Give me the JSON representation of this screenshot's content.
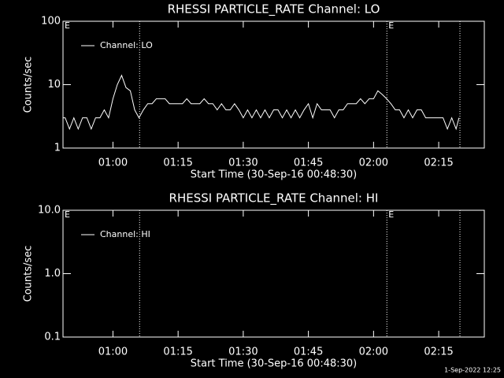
{
  "chart_data": [
    {
      "type": "line",
      "title": "RHESSI PARTICLE_RATE Channel: LO",
      "xlabel": "Start Time (30-Sep-16 00:48:30)",
      "ylabel": "Counts/sec",
      "log_y": true,
      "legend": "upper left",
      "xlim": [
        "00:48:30",
        "02:25:30"
      ],
      "xticks": [
        "01:00",
        "01:15",
        "01:30",
        "01:45",
        "02:00",
        "02:15"
      ],
      "ylim": [
        1,
        100
      ],
      "yticks": [
        1,
        10,
        100
      ],
      "vlines": [
        "01:06:08",
        "02:03:04",
        "02:19:53"
      ],
      "annotations": [
        {
          "text": "E",
          "x": "00:48:30"
        },
        {
          "text": "E",
          "x": "02:03:04"
        }
      ],
      "x": [
        "00:48:30",
        "00:49",
        "00:50",
        "00:51",
        "00:52",
        "00:53",
        "00:54",
        "00:55",
        "00:56",
        "00:57",
        "00:58",
        "00:59",
        "01:00",
        "01:01",
        "01:02",
        "01:03",
        "01:04",
        "01:05",
        "01:06",
        "01:07",
        "01:08",
        "01:09",
        "01:10",
        "01:11",
        "01:12",
        "01:13",
        "01:14",
        "01:15",
        "01:16",
        "01:17",
        "01:18",
        "01:19",
        "01:20",
        "01:21",
        "01:22",
        "01:23",
        "01:24",
        "01:25",
        "01:26",
        "01:27",
        "01:28",
        "01:29",
        "01:30",
        "01:31",
        "01:32",
        "01:33",
        "01:34",
        "01:35",
        "01:36",
        "01:37",
        "01:38",
        "01:39",
        "01:40",
        "01:41",
        "01:42",
        "01:43",
        "01:44",
        "01:45",
        "01:46",
        "01:47",
        "01:48",
        "01:49",
        "01:50",
        "01:51",
        "01:52",
        "01:53",
        "01:54",
        "01:55",
        "01:56",
        "01:57",
        "01:58",
        "01:59",
        "02:00",
        "02:01",
        "02:02",
        "02:03",
        "02:04",
        "02:05",
        "02:06",
        "02:07",
        "02:08",
        "02:09",
        "02:10",
        "02:11",
        "02:12",
        "02:13",
        "02:14",
        "02:15",
        "02:16",
        "02:17",
        "02:18",
        "02:19",
        "02:19:40"
      ],
      "series": [
        {
          "name": "Channel: LO",
          "color": "#ffffff",
          "values": [
            3,
            3,
            2,
            3,
            2,
            3,
            3,
            2,
            3,
            3,
            4,
            3,
            6,
            10,
            14,
            9,
            8,
            4,
            3,
            4,
            5,
            5,
            6,
            6,
            6,
            5,
            5,
            5,
            5,
            6,
            5,
            5,
            5,
            6,
            5,
            5,
            4,
            5,
            4,
            4,
            5,
            4,
            3,
            4,
            3,
            4,
            3,
            4,
            3,
            4,
            4,
            3,
            4,
            3,
            4,
            3,
            4,
            5,
            3,
            5,
            4,
            4,
            4,
            3,
            4,
            4,
            5,
            5,
            5,
            6,
            5,
            6,
            6,
            8,
            7,
            6,
            5,
            4,
            4,
            3,
            4,
            3,
            4,
            4,
            3,
            3,
            3,
            3,
            3,
            2,
            3,
            2,
            3
          ]
        }
      ]
    },
    {
      "type": "line",
      "title": "RHESSI PARTICLE_RATE Channel: HI",
      "xlabel": "Start Time (30-Sep-16 00:48:30)",
      "ylabel": "Counts/sec",
      "log_y": true,
      "legend": "upper left",
      "xlim": [
        "00:48:30",
        "02:25:30"
      ],
      "xticks": [
        "01:00",
        "01:15",
        "01:30",
        "01:45",
        "02:00",
        "02:15"
      ],
      "ylim": [
        0.1,
        10
      ],
      "yticks": [
        0.1,
        {
          "value": 1,
          "label": "1.0"
        },
        {
          "value": 10,
          "label": "10.0"
        }
      ],
      "vlines": [
        "01:06:08",
        "02:03:04",
        "02:19:53"
      ],
      "annotations": [
        {
          "text": "E",
          "x": "00:48:30"
        },
        {
          "text": "E",
          "x": "02:03:04"
        }
      ],
      "x": [],
      "series": [
        {
          "name": "Channel: HI",
          "color": "#ffffff",
          "values": []
        }
      ]
    }
  ],
  "footer": "1-Sep-2022 12:25"
}
